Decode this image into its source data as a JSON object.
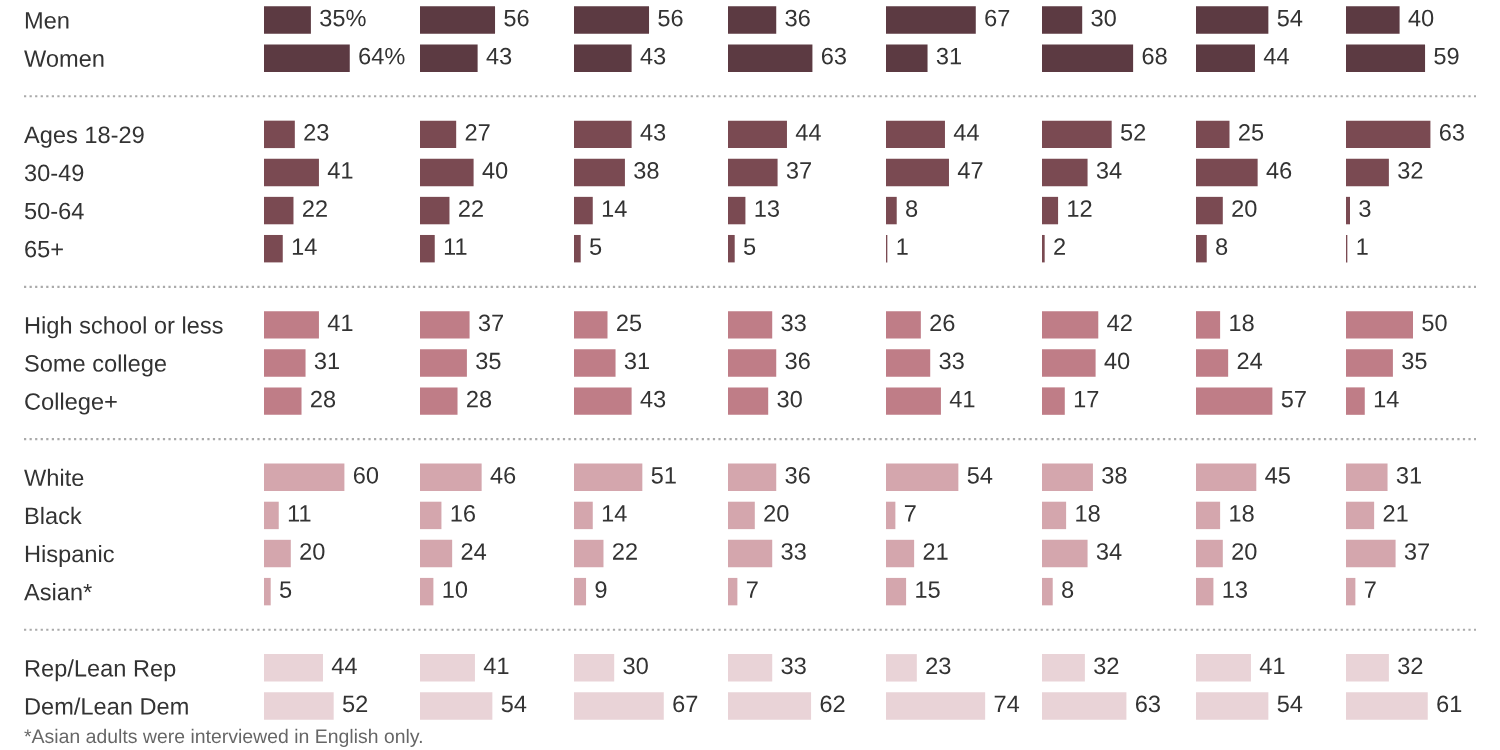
{
  "chart_data": [
    {
      "type": "bar",
      "orientation": "horizontal",
      "tick_labels": "y",
      "categories": [
        "Men",
        "Women",
        null,
        "Ages 18-29",
        "30-49",
        "50-64",
        "65+",
        null,
        "High school or less",
        "Some college",
        "College+",
        null,
        "White",
        "Black",
        "Hispanic",
        "Asian*",
        null,
        "Rep/Lean Rep",
        "Dem/Lean Dem"
      ],
      "values": [
        35,
        64,
        null,
        23,
        41,
        22,
        14,
        null,
        41,
        31,
        28,
        null,
        60,
        11,
        20,
        5,
        null,
        44,
        52
      ],
      "value_labels": [
        "35%",
        "64%",
        null,
        "23",
        "41",
        "22",
        "14",
        null,
        "41",
        "31",
        "28",
        null,
        "60",
        "11",
        "20",
        "5",
        null,
        "44",
        "52"
      ],
      "colors": [
        "#5c3a42",
        "#5c3a42",
        null,
        "#7a4a52",
        "#7a4a52",
        "#7a4a52",
        "#7a4a52",
        null,
        "#bf7d87",
        "#bf7d87",
        "#bf7d87",
        null,
        "#d4a6ad",
        "#d4a6ad",
        "#d4a6ad",
        "#d4a6ad",
        null,
        "#e9d3d7",
        "#e9d3d7"
      ],
      "annotations": [
        "*Asian adults were interviewed in English only."
      ]
    },
    {
      "type": "bar",
      "orientation": "horizontal",
      "data_labels": true,
      "categories": [
        null,
        null,
        null,
        null,
        null,
        null,
        null,
        null,
        null,
        null,
        null,
        null,
        null,
        null,
        null,
        null,
        null,
        null,
        null
      ],
      "values": [
        56,
        43,
        null,
        27,
        40,
        22,
        11,
        null,
        37,
        35,
        28,
        null,
        46,
        16,
        24,
        10,
        null,
        41,
        54
      ],
      "colors": [
        "#5c3a42",
        "#5c3a42",
        null,
        "#7a4a52",
        "#7a4a52",
        "#7a4a52",
        "#7a4a52",
        null,
        "#bf7d87",
        "#bf7d87",
        "#bf7d87",
        null,
        "#d4a6ad",
        "#d4a6ad",
        "#d4a6ad",
        "#d4a6ad",
        null,
        "#e9d3d7",
        "#e9d3d7"
      ]
    },
    {
      "type": "bar",
      "orientation": "horizontal",
      "data_labels": true,
      "categories": [
        null,
        null,
        null,
        null,
        null,
        null,
        null,
        null,
        null,
        null,
        null,
        null,
        null,
        null,
        null,
        null,
        null,
        null,
        null
      ],
      "values": [
        56,
        43,
        null,
        43,
        38,
        14,
        5,
        null,
        25,
        31,
        43,
        null,
        51,
        14,
        22,
        9,
        null,
        30,
        67
      ],
      "colors": [
        "#5c3a42",
        "#5c3a42",
        null,
        "#7a4a52",
        "#7a4a52",
        "#7a4a52",
        "#7a4a52",
        null,
        "#bf7d87",
        "#bf7d87",
        "#bf7d87",
        null,
        "#d4a6ad",
        "#d4a6ad",
        "#d4a6ad",
        "#d4a6ad",
        null,
        "#e9d3d7",
        "#e9d3d7"
      ]
    },
    {
      "type": "bar",
      "orientation": "horizontal",
      "data_labels": true,
      "categories": [
        null,
        null,
        null,
        null,
        null,
        null,
        null,
        null,
        null,
        null,
        null,
        null,
        null,
        null,
        null,
        null,
        null,
        null,
        null
      ],
      "values": [
        36,
        63,
        null,
        44,
        37,
        13,
        5,
        null,
        33,
        36,
        30,
        null,
        36,
        20,
        33,
        7,
        null,
        33,
        62
      ],
      "colors": [
        "#5c3a42",
        "#5c3a42",
        null,
        "#7a4a52",
        "#7a4a52",
        "#7a4a52",
        "#7a4a52",
        null,
        "#bf7d87",
        "#bf7d87",
        "#bf7d87",
        null,
        "#d4a6ad",
        "#d4a6ad",
        "#d4a6ad",
        "#d4a6ad",
        null,
        "#e9d3d7",
        "#e9d3d7"
      ]
    },
    {
      "type": "bar",
      "orientation": "horizontal",
      "data_labels": true,
      "categories": [
        null,
        null,
        null,
        null,
        null,
        null,
        null,
        null,
        null,
        null,
        null,
        null,
        null,
        null,
        null,
        null,
        null,
        null,
        null
      ],
      "values": [
        67,
        31,
        null,
        44,
        47,
        8,
        1,
        null,
        26,
        33,
        41,
        null,
        54,
        7,
        21,
        15,
        null,
        23,
        74
      ],
      "colors": [
        "#5c3a42",
        "#5c3a42",
        null,
        "#7a4a52",
        "#7a4a52",
        "#7a4a52",
        "#7a4a52",
        null,
        "#bf7d87",
        "#bf7d87",
        "#bf7d87",
        null,
        "#d4a6ad",
        "#d4a6ad",
        "#d4a6ad",
        "#d4a6ad",
        null,
        "#e9d3d7",
        "#e9d3d7"
      ]
    },
    {
      "type": "bar",
      "orientation": "horizontal",
      "data_labels": true,
      "categories": [
        null,
        null,
        null,
        null,
        null,
        null,
        null,
        null,
        null,
        null,
        null,
        null,
        null,
        null,
        null,
        null,
        null,
        null,
        null
      ],
      "values": [
        30,
        68,
        null,
        52,
        34,
        12,
        2,
        null,
        42,
        40,
        17,
        null,
        38,
        18,
        34,
        8,
        null,
        32,
        63
      ],
      "colors": [
        "#5c3a42",
        "#5c3a42",
        null,
        "#7a4a52",
        "#7a4a52",
        "#7a4a52",
        "#7a4a52",
        null,
        "#bf7d87",
        "#bf7d87",
        "#bf7d87",
        null,
        "#d4a6ad",
        "#d4a6ad",
        "#d4a6ad",
        "#d4a6ad",
        null,
        "#e9d3d7",
        "#e9d3d7"
      ]
    },
    {
      "type": "bar",
      "orientation": "horizontal",
      "data_labels": true,
      "categories": [
        null,
        null,
        null,
        null,
        null,
        null,
        null,
        null,
        null,
        null,
        null,
        null,
        null,
        null,
        null,
        null,
        null,
        null,
        null
      ],
      "values": [
        54,
        44,
        null,
        25,
        46,
        20,
        8,
        null,
        18,
        24,
        57,
        null,
        45,
        18,
        20,
        13,
        null,
        41,
        54
      ],
      "colors": [
        "#5c3a42",
        "#5c3a42",
        null,
        "#7a4a52",
        "#7a4a52",
        "#7a4a52",
        "#7a4a52",
        null,
        "#bf7d87",
        "#bf7d87",
        "#bf7d87",
        null,
        "#d4a6ad",
        "#d4a6ad",
        "#d4a6ad",
        "#d4a6ad",
        null,
        "#e9d3d7",
        "#e9d3d7"
      ]
    },
    {
      "type": "bar",
      "orientation": "horizontal",
      "data_labels": true,
      "categories": [
        null,
        null,
        null,
        null,
        null,
        null,
        null,
        null,
        null,
        null,
        null,
        null,
        null,
        null,
        null,
        null,
        null,
        null,
        null
      ],
      "values": [
        40,
        59,
        null,
        63,
        32,
        3,
        1,
        null,
        50,
        35,
        14,
        null,
        31,
        21,
        37,
        7,
        null,
        32,
        61
      ],
      "colors": [
        "#5c3a42",
        "#5c3a42",
        null,
        "#7a4a52",
        "#7a4a52",
        "#7a4a52",
        "#7a4a52",
        null,
        "#bf7d87",
        "#bf7d87",
        "#bf7d87",
        null,
        "#d4a6ad",
        "#d4a6ad",
        "#d4a6ad",
        "#d4a6ad",
        null,
        "#e9d3d7",
        "#e9d3d7"
      ]
    }
  ]
}
